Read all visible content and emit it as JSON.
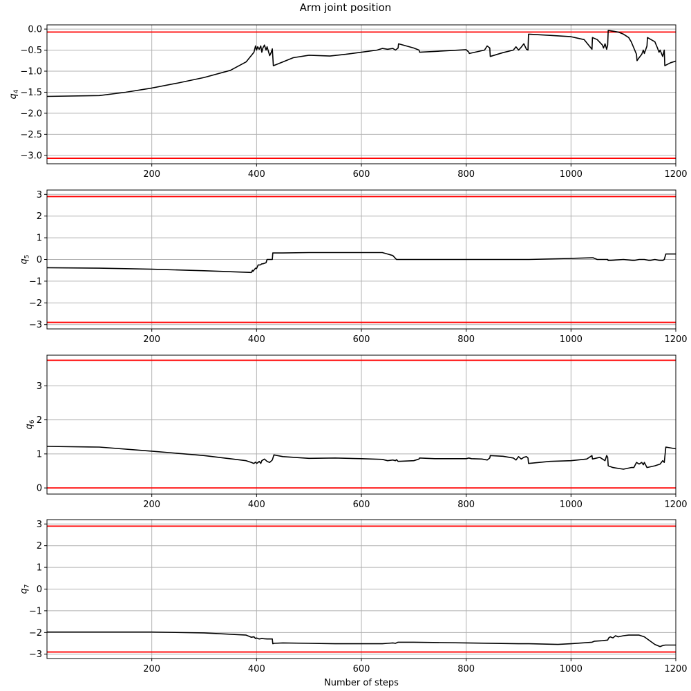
{
  "figure": {
    "title": "Arm joint position",
    "xlabel": "Number of steps"
  },
  "colors": {
    "series": "#000000",
    "limits": "#ff0000",
    "grid": "#b0b0b0",
    "frame": "#000000"
  },
  "chart_data": [
    {
      "type": "line",
      "ylabel": "q",
      "ylabel_sub": "4",
      "xlim": [
        0,
        1200
      ],
      "ylim": [
        -3.2,
        0.1
      ],
      "xticks": [
        200,
        400,
        600,
        800,
        1000,
        1200
      ],
      "yticks": [
        0.0,
        -0.5,
        -1.0,
        -1.5,
        -2.0,
        -2.5,
        -3.0
      ],
      "ytick_labels": [
        "0.0",
        "−0.5",
        "−1.0",
        "−1.5",
        "−2.0",
        "−2.5",
        "−3.0"
      ],
      "grid": true,
      "limits": [
        -0.07,
        -3.07
      ],
      "series": [
        {
          "x": [
            0,
            100,
            150,
            200,
            250,
            300,
            350,
            380,
            395,
            398,
            400,
            402,
            405,
            408,
            410,
            412,
            415,
            418,
            420,
            425,
            428,
            430,
            432,
            450,
            470,
            500,
            540,
            570,
            600,
            630,
            640,
            650,
            660,
            665,
            670,
            671,
            700,
            710,
            711,
            740,
            800,
            805,
            806,
            835,
            840,
            845,
            846,
            870,
            890,
            895,
            900,
            905,
            910,
            915,
            918,
            919,
            960,
            1000,
            1025,
            1040,
            1041,
            1050,
            1060,
            1062,
            1065,
            1068,
            1070,
            1071,
            1090,
            1100,
            1110,
            1115,
            1120,
            1125,
            1126,
            1130,
            1135,
            1138,
            1140,
            1145,
            1146,
            1160,
            1165,
            1168,
            1170,
            1175,
            1178,
            1179,
            1190,
            1200
          ],
          "y": [
            -1.6,
            -1.58,
            -1.5,
            -1.4,
            -1.28,
            -1.15,
            -0.98,
            -0.78,
            -0.55,
            -0.4,
            -0.5,
            -0.42,
            -0.48,
            -0.4,
            -0.55,
            -0.45,
            -0.38,
            -0.5,
            -0.42,
            -0.63,
            -0.55,
            -0.47,
            -0.87,
            -0.78,
            -0.68,
            -0.62,
            -0.64,
            -0.6,
            -0.55,
            -0.5,
            -0.46,
            -0.48,
            -0.46,
            -0.5,
            -0.45,
            -0.35,
            -0.45,
            -0.5,
            -0.55,
            -0.53,
            -0.49,
            -0.55,
            -0.58,
            -0.5,
            -0.4,
            -0.45,
            -0.65,
            -0.56,
            -0.5,
            -0.42,
            -0.5,
            -0.43,
            -0.35,
            -0.48,
            -0.5,
            -0.12,
            -0.15,
            -0.18,
            -0.25,
            -0.48,
            -0.2,
            -0.25,
            -0.38,
            -0.45,
            -0.35,
            -0.48,
            -0.38,
            -0.03,
            -0.07,
            -0.12,
            -0.2,
            -0.3,
            -0.45,
            -0.6,
            -0.75,
            -0.68,
            -0.6,
            -0.5,
            -0.58,
            -0.4,
            -0.2,
            -0.3,
            -0.45,
            -0.55,
            -0.5,
            -0.65,
            -0.5,
            -0.87,
            -0.8,
            -0.76
          ]
        }
      ]
    },
    {
      "type": "line",
      "ylabel": "q",
      "ylabel_sub": "5",
      "xlim": [
        0,
        1200
      ],
      "ylim": [
        -3.2,
        3.2
      ],
      "xticks": [
        200,
        400,
        600,
        800,
        1000,
        1200
      ],
      "yticks": [
        3,
        2,
        1,
        0,
        -1,
        -2,
        -3
      ],
      "ytick_labels": [
        "3",
        "2",
        "1",
        "0",
        "−1",
        "−2",
        "−3"
      ],
      "grid": true,
      "limits": [
        2.9,
        -2.9
      ],
      "series": [
        {
          "x": [
            0,
            100,
            200,
            300,
            390,
            392,
            393,
            398,
            400,
            403,
            407,
            410,
            412,
            418,
            420,
            425,
            430,
            431,
            433,
            450,
            500,
            550,
            600,
            640,
            650,
            660,
            665,
            667,
            700,
            800,
            900,
            920,
            1000,
            1040,
            1042,
            1050,
            1070,
            1071,
            1100,
            1120,
            1130,
            1140,
            1150,
            1160,
            1170,
            1175,
            1178,
            1181,
            1200
          ],
          "y": [
            -0.38,
            -0.4,
            -0.45,
            -0.52,
            -0.6,
            -0.5,
            -0.55,
            -0.4,
            -0.42,
            -0.25,
            -0.25,
            -0.2,
            -0.2,
            -0.15,
            0.0,
            0.0,
            0.0,
            0.3,
            0.3,
            0.3,
            0.32,
            0.32,
            0.32,
            0.32,
            0.25,
            0.18,
            0.05,
            0.0,
            0.0,
            0.0,
            0.0,
            0.0,
            0.05,
            0.08,
            0.08,
            0.0,
            0.0,
            -0.05,
            0.0,
            -0.05,
            0.0,
            0.0,
            -0.05,
            0.0,
            -0.05,
            -0.05,
            0.0,
            0.25,
            0.25
          ]
        }
      ]
    },
    {
      "type": "line",
      "ylabel": "q",
      "ylabel_sub": "6",
      "xlim": [
        0,
        1200
      ],
      "ylim": [
        -0.18,
        3.9
      ],
      "xticks": [
        200,
        400,
        600,
        800,
        1000,
        1200
      ],
      "yticks": [
        3,
        2,
        1,
        0
      ],
      "ytick_labels": [
        "3",
        "2",
        "1",
        "0"
      ],
      "grid": true,
      "limits": [
        3.75,
        0.0
      ],
      "series": [
        {
          "x": [
            0,
            100,
            200,
            300,
            380,
            390,
            395,
            398,
            400,
            403,
            405,
            408,
            410,
            415,
            420,
            425,
            430,
            433,
            450,
            500,
            550,
            600,
            640,
            650,
            660,
            665,
            667,
            670,
            700,
            710,
            711,
            740,
            800,
            805,
            810,
            830,
            840,
            845,
            846,
            870,
            890,
            895,
            900,
            905,
            910,
            915,
            918,
            919,
            960,
            1000,
            1030,
            1040,
            1041,
            1055,
            1065,
            1068,
            1070,
            1071,
            1080,
            1100,
            1115,
            1120,
            1125,
            1130,
            1135,
            1138,
            1140,
            1145,
            1160,
            1170,
            1175,
            1178,
            1181,
            1200
          ],
          "y": [
            1.22,
            1.2,
            1.08,
            0.95,
            0.8,
            0.75,
            0.72,
            0.76,
            0.72,
            0.75,
            0.78,
            0.72,
            0.8,
            0.85,
            0.78,
            0.75,
            0.82,
            0.97,
            0.92,
            0.87,
            0.88,
            0.86,
            0.84,
            0.8,
            0.82,
            0.8,
            0.83,
            0.78,
            0.8,
            0.85,
            0.88,
            0.86,
            0.86,
            0.88,
            0.86,
            0.85,
            0.82,
            0.88,
            0.95,
            0.93,
            0.88,
            0.82,
            0.92,
            0.85,
            0.9,
            0.92,
            0.88,
            0.72,
            0.78,
            0.8,
            0.85,
            0.95,
            0.85,
            0.9,
            0.8,
            0.95,
            0.9,
            0.65,
            0.6,
            0.55,
            0.6,
            0.6,
            0.75,
            0.7,
            0.75,
            0.68,
            0.75,
            0.6,
            0.65,
            0.7,
            0.8,
            0.75,
            1.2,
            1.15
          ]
        }
      ]
    },
    {
      "type": "line",
      "ylabel": "q",
      "ylabel_sub": "7",
      "xlim": [
        0,
        1200
      ],
      "ylim": [
        -3.2,
        3.2
      ],
      "xticks": [
        200,
        400,
        600,
        800,
        1000,
        1200
      ],
      "yticks": [
        3,
        2,
        1,
        0,
        -1,
        -2,
        -3
      ],
      "ytick_labels": [
        "3",
        "2",
        "1",
        "0",
        "−1",
        "−2",
        "−3"
      ],
      "grid": true,
      "limits": [
        2.9,
        -2.9
      ],
      "series": [
        {
          "x": [
            0,
            100,
            200,
            300,
            380,
            390,
            395,
            398,
            400,
            405,
            410,
            420,
            430,
            431,
            433,
            450,
            500,
            550,
            600,
            640,
            650,
            660,
            665,
            670,
            700,
            800,
            900,
            920,
            975,
            1000,
            1040,
            1045,
            1060,
            1070,
            1072,
            1075,
            1080,
            1085,
            1090,
            1100,
            1110,
            1130,
            1140,
            1160,
            1170,
            1175,
            1180,
            1200
          ],
          "y": [
            -1.98,
            -1.98,
            -1.98,
            -2.02,
            -2.12,
            -2.22,
            -2.2,
            -2.28,
            -2.25,
            -2.3,
            -2.28,
            -2.3,
            -2.3,
            -2.52,
            -2.5,
            -2.48,
            -2.5,
            -2.52,
            -2.52,
            -2.52,
            -2.5,
            -2.48,
            -2.5,
            -2.45,
            -2.45,
            -2.48,
            -2.52,
            -2.52,
            -2.55,
            -2.52,
            -2.45,
            -2.4,
            -2.38,
            -2.35,
            -2.25,
            -2.2,
            -2.25,
            -2.15,
            -2.2,
            -2.15,
            -2.12,
            -2.12,
            -2.2,
            -2.55,
            -2.65,
            -2.6,
            -2.58,
            -2.58
          ]
        }
      ]
    }
  ]
}
